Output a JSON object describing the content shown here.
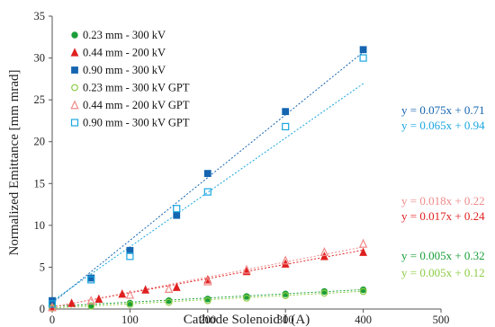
{
  "chart_data": {
    "type": "scatter",
    "xlabel": "Cathode Solenoid I (A)",
    "ylabel": "Normalized  Emittance [mm mrad]",
    "xlim": [
      0,
      500
    ],
    "ylim": [
      0,
      35
    ],
    "xticks": [
      0,
      100,
      200,
      300,
      400,
      500
    ],
    "yticks": [
      0,
      5,
      10,
      15,
      20,
      25,
      30,
      35
    ],
    "grid": false,
    "legend_position": "top-left",
    "series": [
      {
        "name": "0.23 mm - 300 kV",
        "marker": "circle",
        "filled": true,
        "color": "#1a9e3a",
        "x": [
          0,
          50,
          100,
          150,
          200,
          250,
          300,
          350,
          400
        ],
        "y": [
          0.3,
          0.4,
          0.7,
          1.0,
          1.2,
          1.5,
          1.8,
          2.1,
          2.3
        ],
        "fit": {
          "label": "y = 0.005x + 0.32",
          "slope": 0.005,
          "intercept": 0.32,
          "color": "#1a9e3a",
          "dash": true
        }
      },
      {
        "name": "0.44 mm - 200 kV",
        "marker": "triangle",
        "filled": true,
        "color": "#e02020",
        "x": [
          0,
          25,
          60,
          90,
          120,
          160,
          200,
          250,
          300,
          350,
          400
        ],
        "y": [
          0.3,
          0.7,
          1.2,
          1.8,
          2.3,
          2.6,
          3.5,
          4.5,
          5.4,
          6.3,
          6.8
        ],
        "fit": {
          "label": "y = 0.017x + 0.24",
          "slope": 0.017,
          "intercept": 0.24,
          "color": "#e02020",
          "dash": true
        }
      },
      {
        "name": "0.90 mm - 300 kV",
        "marker": "square",
        "filled": true,
        "color": "#1565b0",
        "x": [
          0,
          50,
          100,
          160,
          200,
          300,
          400
        ],
        "y": [
          1.0,
          3.7,
          7.0,
          11.2,
          16.2,
          23.6,
          31.0
        ],
        "fit": {
          "label": "y = 0.075x + 0.71",
          "slope": 0.075,
          "intercept": 0.71,
          "color": "#1565b0",
          "dash": true
        }
      },
      {
        "name": "0.23 mm - 300 kV GPT",
        "marker": "circle",
        "filled": false,
        "color": "#8ccc44",
        "x": [
          0,
          50,
          100,
          150,
          200,
          250,
          300,
          350,
          400
        ],
        "y": [
          0.1,
          0.35,
          0.55,
          0.8,
          1.0,
          1.3,
          1.6,
          1.9,
          2.1
        ],
        "fit": {
          "label": "y = 0.005x + 0.12",
          "slope": 0.005,
          "intercept": 0.12,
          "color": "#8ccc44",
          "dash": true
        }
      },
      {
        "name": "0.44 mm - 200 kV GPT",
        "marker": "triangle",
        "filled": false,
        "color": "#f08a8a",
        "x": [
          0,
          50,
          100,
          150,
          200,
          250,
          300,
          350,
          400
        ],
        "y": [
          0.2,
          1.0,
          1.7,
          2.4,
          3.3,
          4.7,
          5.8,
          6.8,
          7.8
        ],
        "fit": {
          "label": "y = 0.018x + 0.22",
          "slope": 0.018,
          "intercept": 0.22,
          "color": "#f08a8a",
          "dash": true
        }
      },
      {
        "name": "0.90 mm - 300 kV GPT",
        "marker": "square",
        "filled": false,
        "color": "#1aa6e0",
        "x": [
          0,
          50,
          100,
          160,
          200,
          300,
          400
        ],
        "y": [
          0.6,
          3.5,
          6.3,
          12.0,
          14.0,
          21.8,
          30.0
        ],
        "fit": {
          "label": "y = 0.065x + 0.94",
          "slope": 0.065,
          "intercept": 0.94,
          "color": "#1aa6e0",
          "dash": true
        }
      }
    ]
  }
}
